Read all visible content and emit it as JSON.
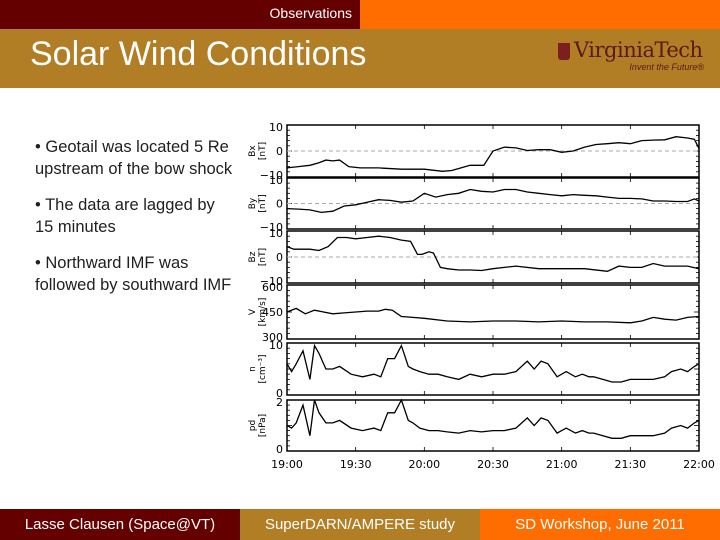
{
  "header": {
    "section": "Observations",
    "title": "Solar Wind Conditions",
    "logo": {
      "name": "VirginiaTech",
      "tagline": "Invent the Future®"
    }
  },
  "bullets": [
    "• Geotail was located 5 Re upstream of the bow shock",
    "• The data are lagged by 15 minutes",
    "• Northward IMF was followed by southward IMF"
  ],
  "footer": {
    "author": "Lasse Clausen (Space@VT)",
    "project": "SuperDARN/AMPERE study",
    "event": "SD Workshop, June 2011"
  },
  "colors": {
    "maroon": "#640000",
    "orange": "#ff6d00",
    "tan": "#b27e25"
  },
  "chart_data": {
    "type": "line",
    "title": "",
    "xlabel": "",
    "x_ticks": [
      "19:00",
      "19:30",
      "20:00",
      "20:30",
      "21:00",
      "21:30",
      "22:00"
    ],
    "x_range_minutes": [
      0,
      180
    ],
    "panels": [
      {
        "name": "Bx",
        "ylabel": "Bx [nT]",
        "ylim": [
          -10,
          10
        ],
        "yticks": [
          "10",
          "0",
          "−10"
        ],
        "zero_line": true,
        "x": [
          0,
          5,
          10,
          14,
          17,
          20,
          23,
          27,
          32,
          40,
          50,
          60,
          68,
          72,
          76,
          80,
          86,
          90,
          95,
          100,
          105,
          110,
          115,
          120,
          125,
          130,
          135,
          140,
          145,
          150,
          155,
          160,
          165,
          170,
          175,
          178,
          180
        ],
        "values": [
          -6.5,
          -6,
          -5.5,
          -4.5,
          -3.5,
          -3.8,
          -3.5,
          -6,
          -6.5,
          -6.5,
          -7,
          -7,
          -7.8,
          -7.5,
          -6.5,
          -5.5,
          -5.5,
          0,
          1.5,
          1.2,
          0.2,
          0.5,
          0.5,
          -0.5,
          0,
          1.5,
          2.5,
          2.8,
          3.2,
          2.8,
          4,
          4.2,
          4.3,
          5.5,
          5,
          4.5,
          1
        ]
      },
      {
        "name": "By",
        "ylabel": "By [nT]",
        "ylim": [
          -10,
          10
        ],
        "yticks": [
          "10",
          "0",
          "−10"
        ],
        "zero_line": true,
        "x": [
          0,
          5,
          10,
          15,
          20,
          25,
          30,
          35,
          40,
          45,
          50,
          55,
          60,
          65,
          70,
          75,
          80,
          85,
          90,
          95,
          100,
          105,
          110,
          115,
          120,
          125,
          130,
          135,
          140,
          145,
          150,
          155,
          160,
          165,
          170,
          175,
          178,
          180
        ],
        "values": [
          -2,
          -2.2,
          -2.5,
          -3.5,
          -3,
          -1,
          -0.5,
          0.5,
          1.5,
          1.2,
          0.5,
          1,
          4,
          2.5,
          3.5,
          4,
          5.5,
          4.8,
          4.5,
          5.5,
          5.5,
          4.5,
          4,
          3.5,
          3,
          3.5,
          3.2,
          3,
          2.5,
          2,
          2,
          1.8,
          1,
          1,
          0.8,
          0.8,
          1.8,
          1
        ]
      },
      {
        "name": "Bz",
        "ylabel": "Bz [nT]",
        "ylim": [
          -10,
          10
        ],
        "yticks": [
          "10",
          "0",
          "−10"
        ],
        "zero_line": true,
        "x": [
          0,
          3,
          6,
          10,
          14,
          18,
          22,
          26,
          30,
          35,
          40,
          45,
          50,
          54,
          57,
          59,
          62,
          64,
          67,
          70,
          75,
          80,
          85,
          90,
          95,
          100,
          110,
          120,
          130,
          140,
          145,
          150,
          155,
          160,
          165,
          170,
          175,
          180
        ],
        "values": [
          4,
          3,
          3,
          3,
          2.5,
          4,
          7.5,
          7.5,
          7,
          7.5,
          8,
          7.5,
          6.5,
          6,
          1,
          1,
          2,
          1.5,
          -4,
          -4.5,
          -5,
          -5,
          -5.2,
          -4.5,
          -4,
          -3.5,
          -4.5,
          -4.5,
          -4.5,
          -5.5,
          -3.5,
          -4,
          -4,
          -2.5,
          -3.5,
          -3.5,
          -3.5,
          -4.5
        ]
      },
      {
        "name": "V",
        "ylabel": "V [km/s]",
        "ylim": [
          300,
          600
        ],
        "yticks": [
          "600",
          "450",
          "300"
        ],
        "zero_line": false,
        "x": [
          0,
          4,
          8,
          12,
          16,
          20,
          25,
          30,
          35,
          40,
          43,
          46,
          50,
          55,
          60,
          70,
          80,
          90,
          100,
          110,
          120,
          130,
          140,
          150,
          155,
          160,
          165,
          170,
          175,
          180
        ],
        "values": [
          450,
          470,
          440,
          460,
          450,
          440,
          445,
          450,
          455,
          455,
          465,
          460,
          425,
          420,
          415,
          400,
          395,
          400,
          400,
          395,
          400,
          395,
          395,
          390,
          400,
          420,
          410,
          405,
          420,
          425
        ]
      },
      {
        "name": "n",
        "ylabel": "n [cm⁻³]",
        "ylim": [
          0,
          10
        ],
        "yticks": [
          "10",
          "",
          "0"
        ],
        "zero_line": false,
        "x": [
          0,
          2,
          4,
          7,
          10,
          12,
          14,
          17,
          20,
          23,
          28,
          33,
          38,
          41,
          44,
          47,
          50,
          53,
          55,
          58,
          62,
          66,
          70,
          75,
          80,
          85,
          90,
          95,
          100,
          105,
          108,
          111,
          114,
          118,
          122,
          126,
          129,
          132,
          134,
          138,
          142,
          146,
          150,
          155,
          160,
          165,
          168,
          172,
          175,
          178,
          180
        ],
        "values": [
          6,
          4.5,
          6,
          8.5,
          3,
          9.5,
          8,
          5,
          5,
          5.5,
          4,
          3.5,
          4,
          3.5,
          7,
          7,
          9.5,
          5.5,
          5,
          4.5,
          4,
          4,
          3.5,
          3,
          4,
          3.5,
          4,
          4,
          4.5,
          6.5,
          5,
          6.5,
          6,
          3.5,
          4.5,
          3.5,
          4,
          3.5,
          3.5,
          3,
          2.5,
          2.5,
          3,
          3,
          3,
          3.5,
          4.5,
          5,
          4.5,
          5.5,
          6
        ]
      },
      {
        "name": "pd",
        "ylabel": "pd [nPa]",
        "ylim": [
          0,
          2
        ],
        "yticks": [
          "2",
          "",
          "0"
        ],
        "zero_line": false,
        "x": [
          0,
          2,
          4,
          7,
          10,
          12,
          14,
          17,
          20,
          23,
          28,
          33,
          38,
          41,
          44,
          47,
          50,
          53,
          55,
          58,
          62,
          66,
          70,
          75,
          80,
          85,
          90,
          95,
          100,
          105,
          108,
          111,
          114,
          118,
          122,
          126,
          129,
          132,
          134,
          138,
          142,
          146,
          150,
          155,
          160,
          165,
          168,
          172,
          175,
          178,
          180
        ],
        "values": [
          1,
          0.9,
          1.1,
          1.8,
          0.6,
          2,
          1.5,
          1.1,
          1.1,
          1.2,
          0.9,
          0.8,
          0.9,
          0.8,
          1.5,
          1.5,
          2,
          1.2,
          1.1,
          0.9,
          0.8,
          0.8,
          0.75,
          0.7,
          0.8,
          0.75,
          0.8,
          0.8,
          0.9,
          1.3,
          1,
          1.3,
          1.2,
          0.7,
          0.9,
          0.7,
          0.8,
          0.7,
          0.7,
          0.6,
          0.5,
          0.5,
          0.6,
          0.6,
          0.6,
          0.7,
          0.9,
          1,
          0.9,
          1.1,
          1.2
        ]
      }
    ]
  }
}
